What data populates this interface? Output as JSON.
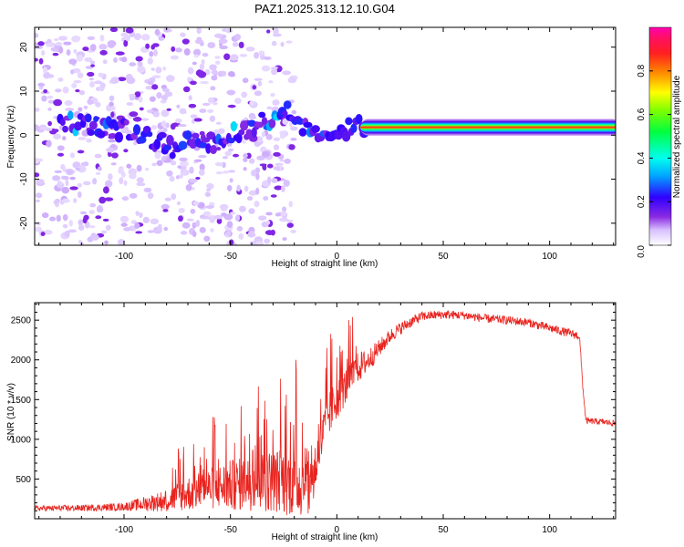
{
  "title": "PAZ1.2025.313.12.10.G04",
  "chart_data": [
    {
      "type": "heatmap",
      "name": "spectrogram",
      "xlabel": "Height of straight line (km)",
      "ylabel": "Frequency (Hz)",
      "xlim": [
        -142,
        131
      ],
      "ylim": [
        -25,
        24.5
      ],
      "xticks": [
        -100,
        -50,
        0,
        50,
        100
      ],
      "xtick_labels": [
        "-100",
        "-50",
        "0",
        "50",
        "100"
      ],
      "yticks": [
        -20,
        -10,
        0,
        10,
        20
      ],
      "ytick_labels": [
        "-20",
        "-10",
        "0",
        "10",
        "20"
      ],
      "colorbar": {
        "label": "Normalized spectral amplitude",
        "range": [
          0,
          1
        ],
        "ticks": [
          0,
          0.2,
          0.4,
          0.6,
          0.8
        ],
        "tick_labels": [
          "0.0",
          "0.2",
          "0.4",
          "0.6",
          "0.8"
        ],
        "colormap": "rainbow (white-purple-blue-cyan-green-yellow-red-magenta)"
      },
      "features": [
        {
          "description": "scattered noise speckles",
          "x_range": [
            -142,
            -20
          ],
          "freq_range": [
            -25,
            24
          ],
          "amplitude": 0.05
        },
        {
          "description": "wandering signal line",
          "points": [
            [
              -130,
              3
            ],
            [
              -110,
              2
            ],
            [
              -95,
              1
            ],
            [
              -85,
              -1
            ],
            [
              -78,
              -3
            ],
            [
              -70,
              -1
            ],
            [
              -60,
              -2
            ],
            [
              -52,
              -1
            ],
            [
              -45,
              1
            ],
            [
              -38,
              2
            ],
            [
              -30,
              4
            ],
            [
              -24,
              6
            ],
            [
              -18,
              3
            ],
            [
              -14,
              2
            ],
            [
              -10,
              1.5
            ],
            [
              -5,
              1
            ],
            [
              0,
              1
            ],
            [
              5,
              1.5
            ],
            [
              10,
              2
            ],
            [
              15,
              1.5
            ]
          ],
          "amplitude": 0.25
        },
        {
          "description": "steady signal band",
          "x_range": [
            15,
            131
          ],
          "freq": 1.8,
          "amplitude": 0.85
        }
      ]
    },
    {
      "type": "line",
      "name": "snr",
      "xlabel": "Height of straight line (km)",
      "ylabel": "SNR (10 * v/v)",
      "xlim": [
        -142,
        131
      ],
      "ylim": [
        0,
        2720
      ],
      "xticks": [
        -100,
        -50,
        0,
        50,
        100
      ],
      "xtick_labels": [
        "-100",
        "-50",
        "0",
        "50",
        "100"
      ],
      "yticks": [
        500,
        1000,
        1500,
        2000,
        2500
      ],
      "ytick_labels": [
        "500",
        "1000",
        "1500",
        "2000",
        "2500"
      ],
      "color": "#e8231e",
      "envelope": {
        "x": [
          -142,
          -120,
          -100,
          -80,
          -70,
          -60,
          -50,
          -40,
          -30,
          -20,
          -12,
          -8,
          -4,
          0,
          5,
          10,
          15,
          20,
          25,
          30,
          35,
          40,
          50,
          60,
          70,
          80,
          90,
          100,
          110,
          114,
          115.5,
          117,
          125,
          131
        ],
        "y": [
          130,
          135,
          150,
          230,
          320,
          380,
          420,
          450,
          480,
          470,
          420,
          900,
          1300,
          1500,
          1700,
          1900,
          2000,
          2150,
          2300,
          2400,
          2480,
          2550,
          2570,
          2560,
          2520,
          2500,
          2470,
          2400,
          2330,
          2300,
          1700,
          1230,
          1220,
          1200
        ],
        "noise": [
          35,
          40,
          50,
          140,
          220,
          260,
          320,
          350,
          400,
          450,
          420,
          320,
          300,
          250,
          230,
          200,
          150,
          110,
          90,
          80,
          70,
          60,
          55,
          55,
          55,
          55,
          55,
          55,
          55,
          55,
          50,
          40,
          40,
          40
        ]
      }
    }
  ],
  "colors": {
    "line": "#e8231e",
    "axis": "#000000",
    "background": "#ffffff"
  }
}
